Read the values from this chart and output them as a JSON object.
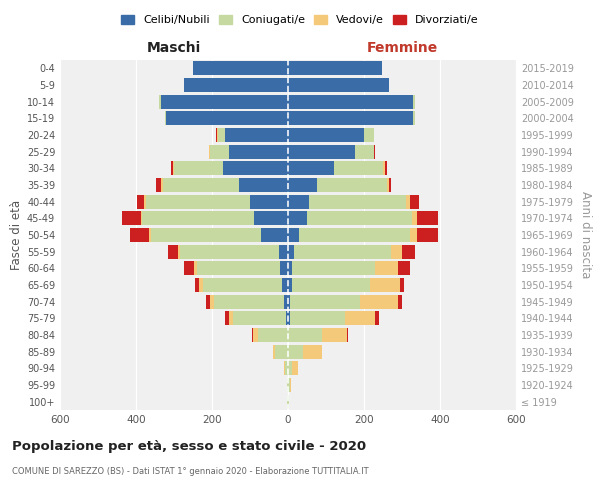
{
  "age_groups": [
    "100+",
    "95-99",
    "90-94",
    "85-89",
    "80-84",
    "75-79",
    "70-74",
    "65-69",
    "60-64",
    "55-59",
    "50-54",
    "45-49",
    "40-44",
    "35-39",
    "30-34",
    "25-29",
    "20-24",
    "15-19",
    "10-14",
    "5-9",
    "0-4"
  ],
  "birth_years": [
    "≤ 1919",
    "1920-1924",
    "1925-1929",
    "1930-1934",
    "1935-1939",
    "1940-1944",
    "1945-1949",
    "1950-1954",
    "1955-1959",
    "1960-1964",
    "1965-1969",
    "1970-1974",
    "1975-1979",
    "1980-1984",
    "1985-1989",
    "1990-1994",
    "1995-1999",
    "2000-2004",
    "2005-2009",
    "2010-2014",
    "2015-2019"
  ],
  "males": {
    "celibi": [
      0,
      0,
      0,
      0,
      0,
      5,
      10,
      15,
      20,
      25,
      70,
      90,
      100,
      130,
      170,
      155,
      165,
      320,
      335,
      275,
      250
    ],
    "coniugati": [
      2,
      3,
      8,
      35,
      80,
      140,
      185,
      210,
      220,
      260,
      290,
      295,
      275,
      200,
      130,
      50,
      20,
      5,
      5,
      0,
      0
    ],
    "vedovi": [
      0,
      0,
      2,
      5,
      12,
      10,
      10,
      10,
      8,
      5,
      5,
      3,
      3,
      3,
      3,
      2,
      2,
      0,
      0,
      0,
      0
    ],
    "divorziati": [
      0,
      0,
      0,
      0,
      3,
      10,
      10,
      10,
      25,
      25,
      50,
      50,
      20,
      15,
      5,
      2,
      2,
      0,
      0,
      0,
      0
    ]
  },
  "females": {
    "nubili": [
      0,
      0,
      0,
      0,
      0,
      5,
      5,
      10,
      10,
      15,
      30,
      50,
      55,
      75,
      120,
      175,
      200,
      330,
      330,
      265,
      248
    ],
    "coniugate": [
      2,
      5,
      10,
      40,
      90,
      145,
      185,
      205,
      220,
      255,
      290,
      275,
      255,
      185,
      130,
      50,
      25,
      5,
      5,
      0,
      0
    ],
    "vedove": [
      0,
      3,
      15,
      50,
      65,
      80,
      100,
      80,
      60,
      30,
      20,
      15,
      10,
      5,
      5,
      2,
      0,
      0,
      0,
      0,
      0
    ],
    "divorziate": [
      0,
      0,
      0,
      0,
      3,
      10,
      10,
      10,
      30,
      35,
      55,
      55,
      25,
      5,
      5,
      2,
      2,
      0,
      0,
      0,
      0
    ]
  },
  "colors": {
    "celibi": "#3a6ca8",
    "coniugati": "#c5d9a0",
    "vedovi": "#f5c97a",
    "divorziati": "#cc2020"
  },
  "legend_labels": [
    "Celibi/Nubili",
    "Coniugati/e",
    "Vedovi/e",
    "Divorziati/e"
  ],
  "title": "Popolazione per età, sesso e stato civile - 2020",
  "subtitle": "COMUNE DI SAREZZO (BS) - Dati ISTAT 1° gennaio 2020 - Elaborazione TUTTITALIA.IT",
  "xlabel_left": "Maschi",
  "xlabel_right": "Femmine",
  "ylabel_left": "Fasce di età",
  "ylabel_right": "Anni di nascita",
  "xlim": 600,
  "background_color": "#ffffff"
}
